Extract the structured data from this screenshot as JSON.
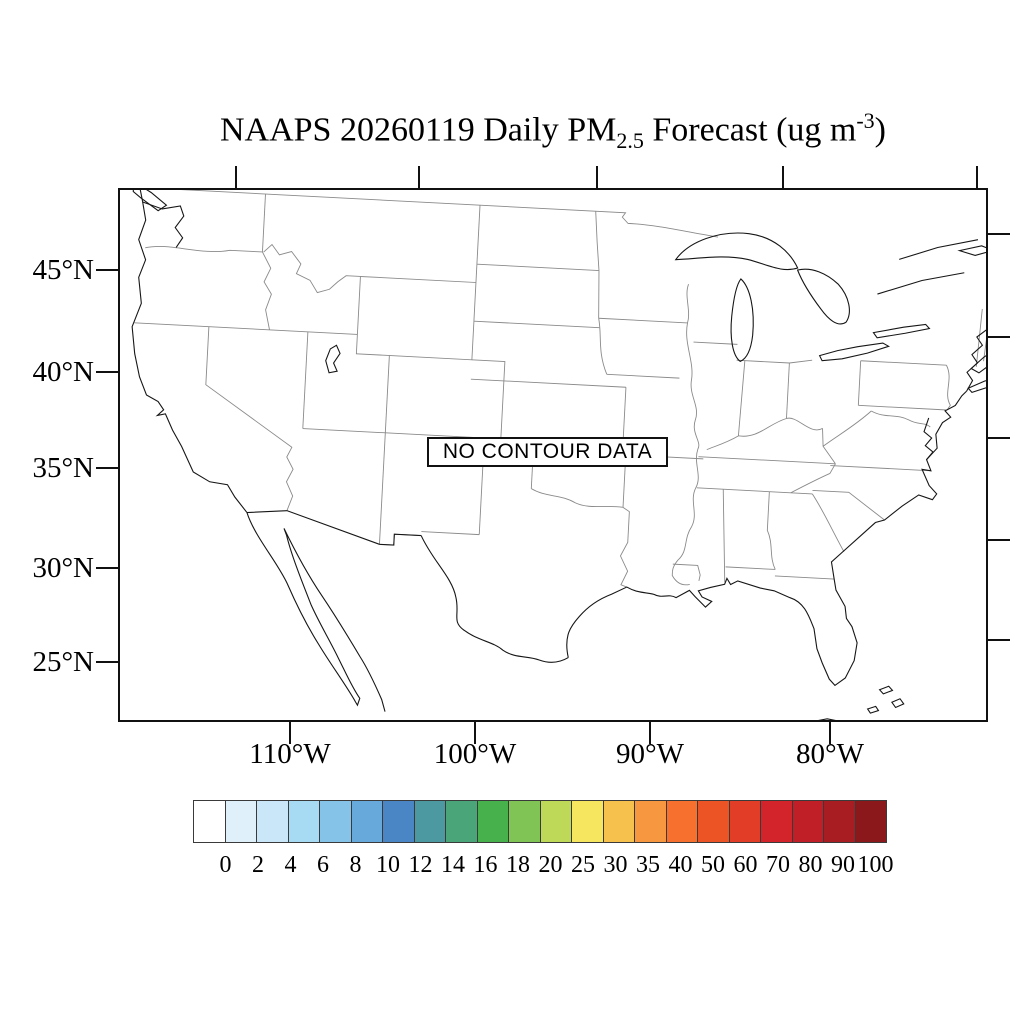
{
  "title": {
    "prefix": "NAAPS 20260119 Daily PM",
    "subscript": "2.5",
    "middle": " Forecast (ug m",
    "superscript": "-3",
    "suffix": ")"
  },
  "map": {
    "no_data_label": "NO CONTOUR DATA",
    "region": "Continental United States"
  },
  "axes": {
    "lat_labels": [
      "45°N",
      "40°N",
      "35°N",
      "30°N",
      "25°N"
    ],
    "lon_labels": [
      "110°W",
      "100°W",
      "90°W",
      "80°W"
    ]
  },
  "colorbar": {
    "tick_labels": [
      "0",
      "2",
      "4",
      "6",
      "8",
      "10",
      "12",
      "14",
      "16",
      "18",
      "20",
      "25",
      "30",
      "35",
      "40",
      "50",
      "60",
      "70",
      "80",
      "90",
      "100"
    ],
    "colors": [
      "#ffffff",
      "#e0f0fa",
      "#c9e7f8",
      "#a7dbf4",
      "#85c3e9",
      "#66a9da",
      "#4a86c5",
      "#4d99a1",
      "#4aa678",
      "#47b24c",
      "#80c455",
      "#bdd957",
      "#f5e55f",
      "#f7c14e",
      "#f79840",
      "#f7702e",
      "#ec5426",
      "#e23d26",
      "#d2242a",
      "#c01f27",
      "#a81d22",
      "#8b191b"
    ]
  },
  "chart_data": {
    "type": "heatmap",
    "title": "NAAPS 20260119 Daily PM2.5 Forecast (ug m-3)",
    "model": "NAAPS",
    "forecast_date": "20260119",
    "variable": "Daily PM2.5",
    "units": "ug m-3",
    "status": "NO CONTOUR DATA",
    "values": [],
    "region": "Continental United States",
    "x_tick_labels": [
      "110°W",
      "100°W",
      "90°W",
      "80°W"
    ],
    "y_tick_labels": [
      "45°N",
      "40°N",
      "35°N",
      "30°N",
      "25°N"
    ],
    "colorbar_levels": [
      0,
      2,
      4,
      6,
      8,
      10,
      12,
      14,
      16,
      18,
      20,
      25,
      30,
      35,
      40,
      50,
      60,
      70,
      80,
      90,
      100
    ],
    "colorbar_colors": [
      "#ffffff",
      "#e0f0fa",
      "#c9e7f8",
      "#a7dbf4",
      "#85c3e9",
      "#66a9da",
      "#4a86c5",
      "#4d99a1",
      "#4aa678",
      "#47b24c",
      "#80c455",
      "#bdd957",
      "#f5e55f",
      "#f7c14e",
      "#f79840",
      "#f7702e",
      "#ec5426",
      "#e23d26",
      "#d2242a",
      "#c01f27",
      "#a81d22",
      "#8b191b"
    ],
    "legend_position": "bottom",
    "grid": false
  }
}
